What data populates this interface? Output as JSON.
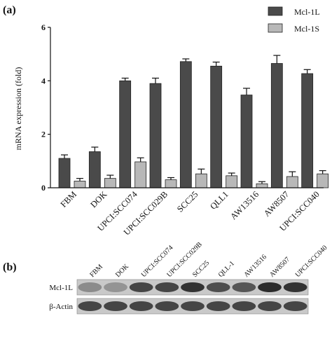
{
  "chart_data": {
    "type": "bar",
    "panel_label": "(a)",
    "ylabel": "mRNA expression (fold)",
    "ylim": [
      0,
      6
    ],
    "yticks": [
      "0",
      "2",
      "4",
      "6"
    ],
    "categories": [
      "FBM",
      "DOK",
      "UPCI:SCC074",
      "UPCI:SCC029B",
      "SCC25",
      "QLL1",
      "AW13516",
      "AW8507",
      "UPCI:SCC040"
    ],
    "series": [
      {
        "name": "Mcl-1L",
        "color": "#4a4a4a",
        "values": [
          1.1,
          1.35,
          4.0,
          3.9,
          4.72,
          4.55,
          3.47,
          4.65,
          4.27
        ],
        "errors": [
          0.13,
          0.17,
          0.1,
          0.2,
          0.1,
          0.15,
          0.25,
          0.3,
          0.15
        ]
      },
      {
        "name": "Mcl-1S",
        "color": "#b8b8b8",
        "values": [
          0.25,
          0.35,
          0.97,
          0.3,
          0.52,
          0.45,
          0.15,
          0.42,
          0.52
        ],
        "errors": [
          0.1,
          0.12,
          0.15,
          0.08,
          0.18,
          0.1,
          0.08,
          0.18,
          0.12
        ]
      }
    ],
    "legend_position": "top-right"
  },
  "blot": {
    "panel_label": "(b)",
    "lanes": [
      "FBM",
      "DOK",
      "UPCI:SCC074",
      "UPCI:SCC029B",
      "SCC25",
      "QLL-1",
      "AW13516",
      "AW8507",
      "UPCI:SCC040"
    ],
    "rows": [
      {
        "name": "Mcl-1L",
        "intensity": [
          0.35,
          0.3,
          0.75,
          0.75,
          0.85,
          0.7,
          0.65,
          0.9,
          0.85
        ]
      },
      {
        "name": "β-Actin",
        "intensity": [
          0.75,
          0.75,
          0.75,
          0.75,
          0.75,
          0.75,
          0.75,
          0.75,
          0.75
        ]
      }
    ]
  }
}
